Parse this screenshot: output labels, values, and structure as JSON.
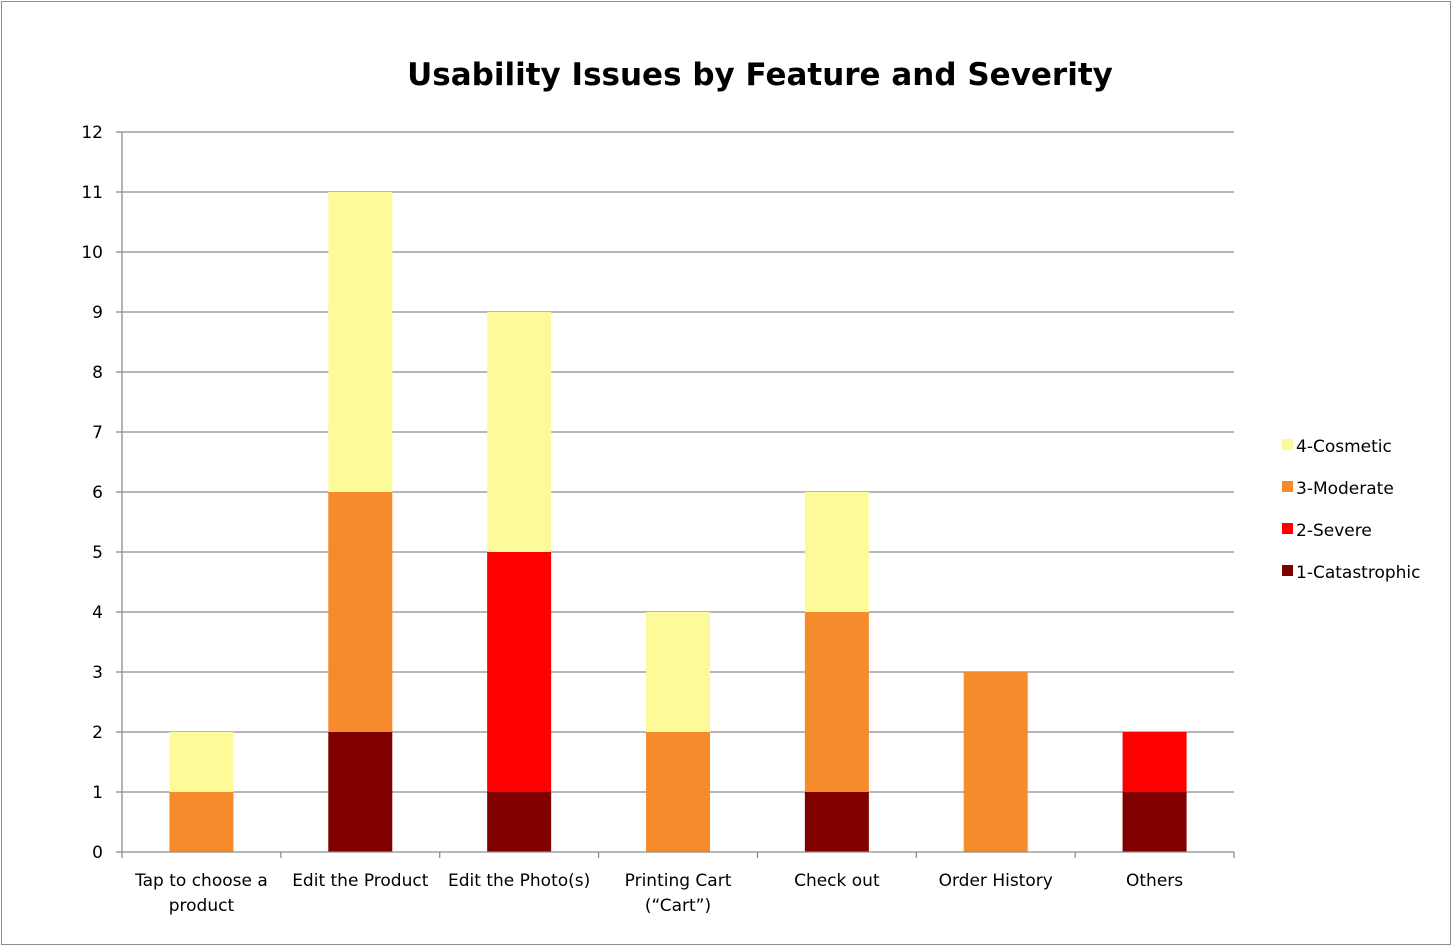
{
  "chart_data": {
    "type": "bar",
    "stacked": true,
    "title": "Usability Issues by Feature and Severity",
    "xlabel": "",
    "ylabel": "",
    "ylim": [
      0,
      12
    ],
    "yticks": [
      0,
      1,
      2,
      3,
      4,
      5,
      6,
      7,
      8,
      9,
      10,
      11,
      12
    ],
    "grid": true,
    "legend_position": "right",
    "categories": [
      [
        "Tap to choose a",
        "product"
      ],
      [
        "Edit the Product"
      ],
      [
        "Edit the Photo(s)"
      ],
      [
        "Printing Cart",
        "(“Cart”)"
      ],
      [
        "Check out"
      ],
      [
        "Order History"
      ],
      [
        "Others"
      ]
    ],
    "series": [
      {
        "name": "1-Catastrophic",
        "color": "#800000",
        "values": [
          0,
          2,
          1,
          0,
          1,
          0,
          1
        ]
      },
      {
        "name": "2-Severe",
        "color": "#ff0000",
        "values": [
          0,
          0,
          4,
          0,
          0,
          0,
          1
        ]
      },
      {
        "name": "3-Moderate",
        "color": "#f68b2c",
        "values": [
          1,
          4,
          0,
          2,
          3,
          3,
          0
        ]
      },
      {
        "name": "4-Cosmetic",
        "color": "#fdfb99",
        "values": [
          1,
          5,
          4,
          2,
          2,
          0,
          0
        ]
      }
    ],
    "legend_order": [
      "4-Cosmetic",
      "3-Moderate",
      "2-Severe",
      "1-Catastrophic"
    ]
  }
}
